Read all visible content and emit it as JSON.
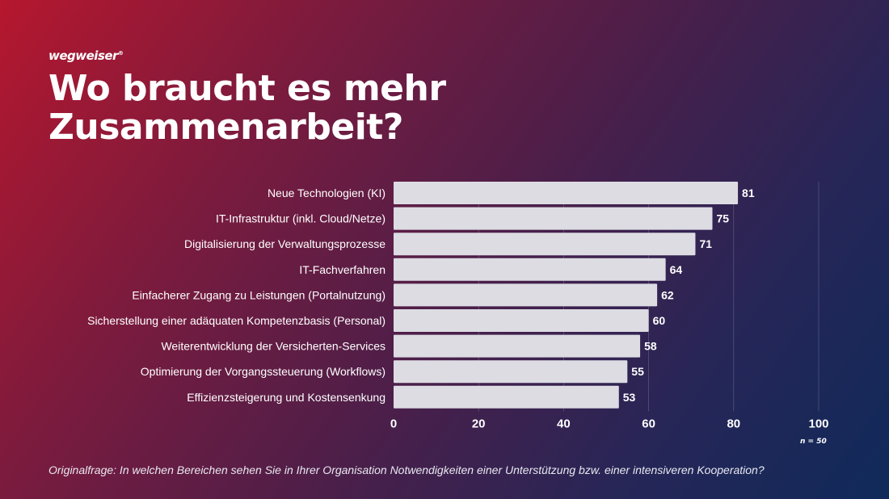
{
  "logo": "wegweiser",
  "title_line1": "Wo braucht es mehr",
  "title_line2": "Zusammenarbeit?",
  "sample": "n = 50",
  "question": "Originalfrage: In welchen Bereichen sehen Sie in Ihrer Organisation Notwendigkeiten einer Unterstützung bzw. einer intensiveren Kooperation?",
  "colors": {
    "bar": "#dcdce2",
    "grid": "#8a8aa8"
  },
  "chart_data": {
    "type": "bar",
    "orientation": "horizontal",
    "categories": [
      "Neue Technologien (KI)",
      "IT-Infrastruktur (inkl. Cloud/Netze)",
      "Digitalisierung der Verwaltungsprozesse",
      "IT-Fachverfahren",
      "Einfacherer Zugang zu Leistungen (Portalnutzung)",
      "Sicherstellung einer adäquaten Kompetenzbasis (Personal)",
      "Weiterentwicklung der Versicherten-Services",
      "Optimierung der Vorgangssteuerung (Workflows)",
      "Effizienzsteigerung und Kostensenkung"
    ],
    "values": [
      81,
      75,
      71,
      64,
      62,
      60,
      58,
      55,
      53
    ],
    "xlim": [
      0,
      100
    ],
    "xticks": [
      0,
      20,
      40,
      60,
      80,
      100
    ],
    "grid": true
  }
}
